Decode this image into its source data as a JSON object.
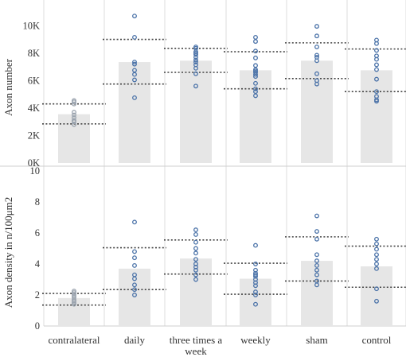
{
  "chart_data": [
    {
      "type": "bar",
      "ylabel": "Axon number",
      "ylim": [
        0,
        11000
      ],
      "yticks": [
        0,
        2000,
        4000,
        6000,
        8000,
        10000
      ],
      "ytick_labels": [
        "0K",
        "2K",
        "4K",
        "6K",
        "8K",
        "10K"
      ],
      "categories": [
        "contralateral",
        "daily",
        "three times a week",
        "weekly",
        "sham",
        "control"
      ],
      "bar_values": [
        3550,
        7350,
        7450,
        6750,
        7450,
        6750
      ],
      "bands": [
        {
          "upper": 4300,
          "lower": 2850
        },
        {
          "upper": 9000,
          "lower": 5750
        },
        {
          "upper": 8350,
          "lower": 6600
        },
        {
          "upper": 8100,
          "lower": 5400
        },
        {
          "upper": 8750,
          "lower": 6150
        },
        {
          "upper": 8300,
          "lower": 5200
        }
      ],
      "points": [
        [
          4550,
          4450,
          4300,
          3700,
          3500,
          3300,
          3100,
          3000,
          2800
        ],
        [
          10700,
          9150,
          7350,
          7200,
          6750,
          6450,
          6050,
          4750
        ],
        [
          8450,
          8350,
          8100,
          8000,
          7900,
          7700,
          7500,
          7350,
          7150,
          6900,
          6500,
          5600
        ],
        [
          9150,
          8850,
          8150,
          7650,
          7100,
          6800,
          6700,
          6600,
          6450,
          6300,
          5800,
          5400,
          5200,
          4900
        ],
        [
          9950,
          9250,
          8450,
          7850,
          7700,
          7450,
          6500,
          6000,
          5750
        ],
        [
          8950,
          8700,
          8200,
          7800,
          7550,
          7150,
          6800,
          6100,
          5200,
          4850,
          4600,
          4500
        ]
      ]
    },
    {
      "type": "bar",
      "ylabel": "Axon density in n/100μm2",
      "ylim": [
        0,
        10
      ],
      "yticks": [
        0,
        2,
        4,
        6,
        8,
        10
      ],
      "ytick_labels": [
        "0",
        "2",
        "4",
        "6",
        "8",
        "10"
      ],
      "categories": [
        "contralateral",
        "daily",
        "three times a week",
        "weekly",
        "sham",
        "control"
      ],
      "bar_values": [
        1.8,
        3.7,
        4.35,
        3.05,
        4.2,
        3.85
      ],
      "bands": [
        {
          "upper": 2.1,
          "lower": 1.35
        },
        {
          "upper": 5.05,
          "lower": 2.35
        },
        {
          "upper": 5.55,
          "lower": 3.35
        },
        {
          "upper": 4.05,
          "lower": 2.05
        },
        {
          "upper": 5.75,
          "lower": 2.9
        },
        {
          "upper": 5.15,
          "lower": 2.5
        }
      ],
      "points": [
        [
          2.25,
          2.15,
          2.05,
          1.95,
          1.85,
          1.7,
          1.6,
          1.5,
          1.4
        ],
        [
          6.7,
          4.8,
          4.4,
          3.9,
          3.3,
          3.05,
          2.65,
          2.35,
          2.0
        ],
        [
          6.2,
          5.9,
          5.4,
          5.0,
          4.7,
          4.3,
          4.0,
          3.8,
          3.6,
          3.3,
          3.0
        ],
        [
          5.2,
          4.0,
          3.6,
          3.4,
          3.3,
          3.2,
          3.0,
          2.8,
          2.6,
          2.2,
          2.0,
          1.4
        ],
        [
          7.1,
          6.1,
          5.6,
          4.6,
          4.2,
          3.9,
          3.6,
          3.3,
          2.9,
          2.65
        ],
        [
          5.6,
          5.3,
          4.95,
          4.6,
          4.3,
          4.0,
          3.7,
          2.4,
          1.6
        ]
      ]
    }
  ],
  "colors": {
    "bar": "#e6e6e6",
    "point": "#4a72a8",
    "point_muted": "#9aa3ae",
    "band": "#444444",
    "grid": "#dddddd",
    "divider": "#cfcfcf"
  }
}
